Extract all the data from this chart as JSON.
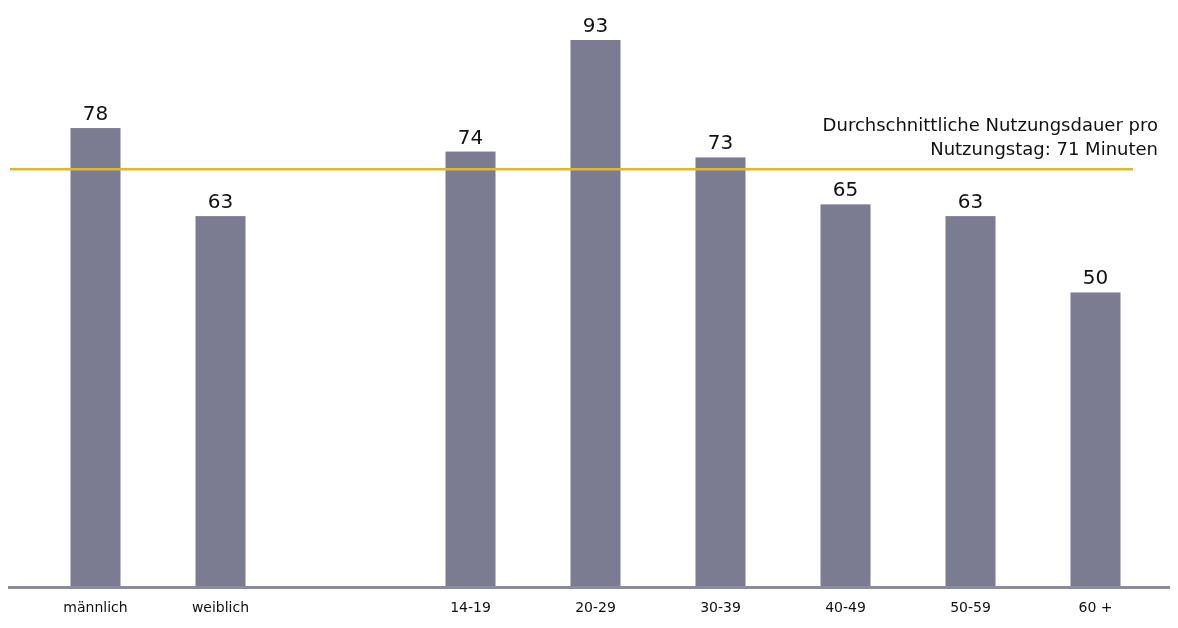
{
  "chart_data": {
    "type": "bar",
    "categories": [
      "männlich",
      "weiblich",
      null,
      "14-19",
      "20-29",
      "30-39",
      "40-49",
      "50-59",
      "60 +"
    ],
    "values": [
      78,
      63,
      null,
      74,
      93,
      73,
      65,
      63,
      50
    ],
    "color": "#7b7b91",
    "data_labels": true,
    "ref_lines": [
      {
        "axis": "y",
        "value": 71,
        "label": "Durchschnittliche Nutzungsdauer pro Nutzungstag: 71 Minuten",
        "color": "#e8b90f"
      }
    ]
  }
}
